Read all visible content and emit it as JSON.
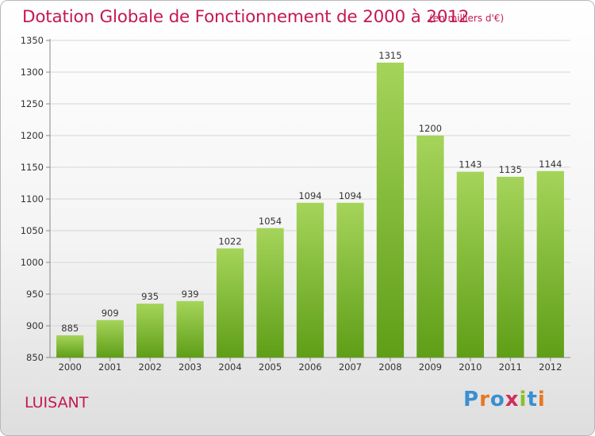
{
  "header": {
    "title": "Dotation Globale de Fonctionnement de 2000 à 2012",
    "subtitle": "(en milliers d'€)"
  },
  "footer": {
    "commune": "LUISANT",
    "logo": "Proxiti"
  },
  "colors": {
    "title": "#c4194f",
    "bar_light": "#a5d45a",
    "bar_dark": "#5f9e17",
    "logo_letters": [
      "#3a8fd1",
      "#e8771f",
      "#3a8fd1",
      "#cf2f5a",
      "#8abf2c",
      "#3a8fd1",
      "#e8771f"
    ]
  },
  "chart_data": {
    "type": "bar",
    "categories": [
      "2000",
      "2001",
      "2002",
      "2003",
      "2004",
      "2005",
      "2006",
      "2007",
      "2008",
      "2009",
      "2010",
      "2011",
      "2012"
    ],
    "values": [
      885,
      909,
      935,
      939,
      1022,
      1054,
      1094,
      1094,
      1315,
      1200,
      1143,
      1135,
      1144
    ],
    "ylim": [
      850,
      1350
    ],
    "yticks": [
      850,
      900,
      950,
      1000,
      1050,
      1100,
      1150,
      1200,
      1250,
      1300,
      1350
    ],
    "title": "Dotation Globale de Fonctionnement de 2000 à 2012",
    "xlabel": "",
    "ylabel": "",
    "grid": true
  }
}
